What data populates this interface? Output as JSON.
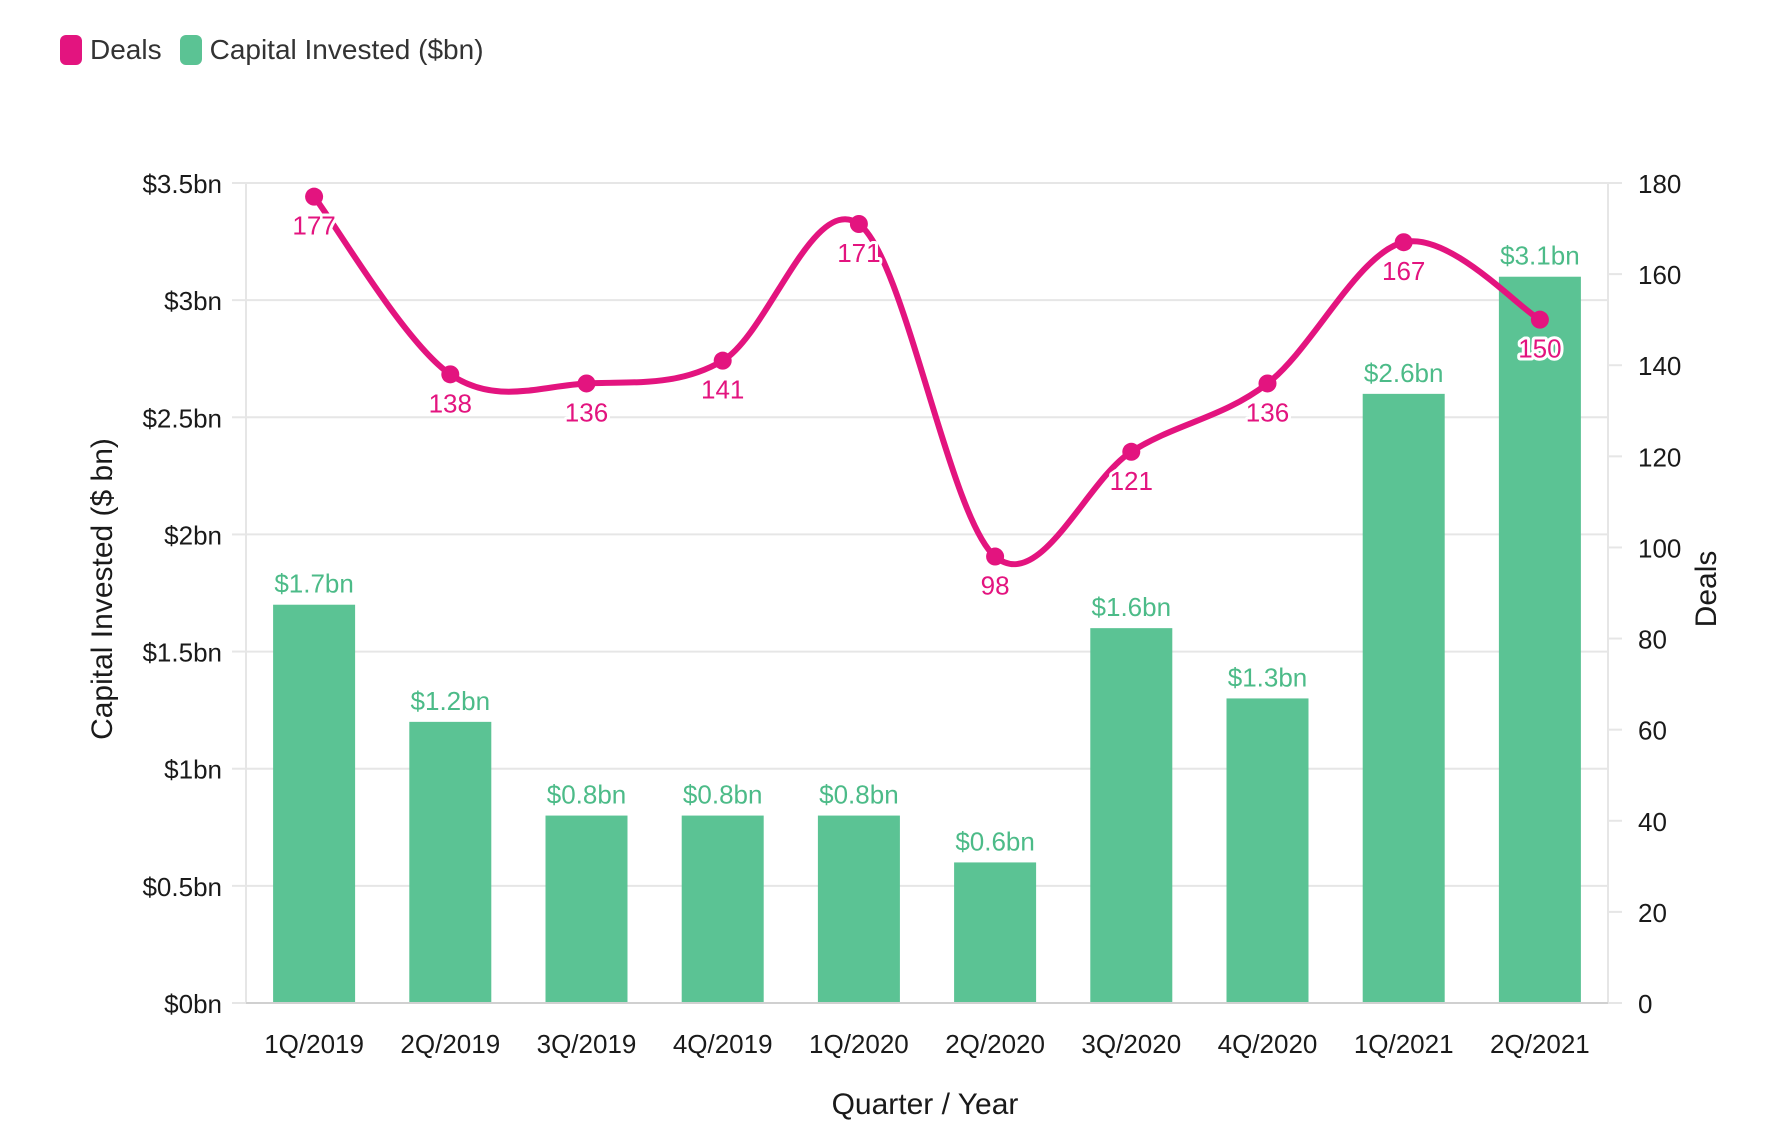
{
  "legend": {
    "deals_label": "Deals",
    "capital_label": "Capital Invested ($bn)"
  },
  "colors": {
    "deals": "#e3147f",
    "capital": "#5bc394",
    "capital_label": "#4cbb88",
    "grid": "#e6e6e6",
    "axis_text": "#1a1a1a"
  },
  "chart_data": {
    "type": "bar+line",
    "xlabel": "Quarter / Year",
    "ylabel_left": "Capital Invested ($ bn)",
    "ylabel_right": "Deals",
    "categories": [
      "1Q/2019",
      "2Q/2019",
      "3Q/2019",
      "4Q/2019",
      "1Q/2020",
      "2Q/2020",
      "3Q/2020",
      "4Q/2020",
      "1Q/2021",
      "2Q/2021"
    ],
    "series": [
      {
        "name": "Capital Invested ($bn)",
        "type": "bar",
        "axis": "left",
        "values": [
          1.7,
          1.2,
          0.8,
          0.8,
          0.8,
          0.6,
          1.6,
          1.3,
          2.6,
          3.1
        ],
        "labels": [
          "$1.7bn",
          "$1.2bn",
          "$0.8bn",
          "$0.8bn",
          "$0.8bn",
          "$0.6bn",
          "$1.6bn",
          "$1.3bn",
          "$2.6bn",
          "$3.1bn"
        ]
      },
      {
        "name": "Deals",
        "type": "line",
        "axis": "right",
        "values": [
          177,
          138,
          136,
          141,
          171,
          98,
          121,
          136,
          167,
          150
        ],
        "labels": [
          "177",
          "138",
          "136",
          "141",
          "171",
          "98",
          "121",
          "136",
          "167",
          "150"
        ]
      }
    ],
    "y_left": {
      "range": [
        0,
        3.5
      ],
      "ticks": [
        0,
        0.5,
        1,
        1.5,
        2,
        2.5,
        3,
        3.5
      ],
      "tick_labels": [
        "$0bn",
        "$0.5bn",
        "$1bn",
        "$1.5bn",
        "$2bn",
        "$2.5bn",
        "$3bn",
        "$3.5bn"
      ]
    },
    "y_right": {
      "range": [
        0,
        180
      ],
      "ticks": [
        0,
        20,
        40,
        60,
        80,
        100,
        120,
        140,
        160,
        180
      ],
      "tick_labels": [
        "0",
        "20",
        "40",
        "60",
        "80",
        "100",
        "120",
        "140",
        "160",
        "180"
      ]
    },
    "grid": true,
    "legend_position": "top-left"
  }
}
